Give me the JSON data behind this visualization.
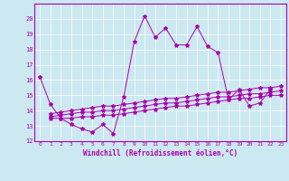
{
  "xlabel": "Windchill (Refroidissement éolien,°C)",
  "xlim": [
    -0.5,
    23.5
  ],
  "ylim": [
    12,
    21
  ],
  "yticks": [
    12,
    13,
    14,
    15,
    16,
    17,
    18,
    19,
    20
  ],
  "xticks": [
    0,
    1,
    2,
    3,
    4,
    5,
    6,
    7,
    8,
    9,
    10,
    11,
    12,
    13,
    14,
    15,
    16,
    17,
    18,
    19,
    20,
    21,
    22,
    23
  ],
  "bg_color": "#cce8f0",
  "line_color": "#aa00aa",
  "grid_color": "#ffffff",
  "series_main_x": [
    0,
    1,
    2,
    3,
    4,
    5,
    6,
    7,
    8,
    9,
    10,
    11,
    12,
    13,
    14,
    15,
    16,
    17,
    18,
    19,
    20,
    21,
    22
  ],
  "series_main_y": [
    16.2,
    14.4,
    13.5,
    13.1,
    12.8,
    12.6,
    13.1,
    12.5,
    14.9,
    18.5,
    20.2,
    18.8,
    19.4,
    18.3,
    18.3,
    19.5,
    18.2,
    17.8,
    14.7,
    15.4,
    14.3,
    14.5,
    15.4
  ],
  "series_low_x": [
    1,
    2,
    3,
    4,
    5,
    6,
    7,
    8,
    9,
    10,
    11,
    12,
    13,
    14,
    15,
    16,
    17,
    18,
    19,
    20,
    21,
    22,
    23
  ],
  "series_low_y": [
    13.5,
    13.5,
    13.5,
    13.6,
    13.6,
    13.7,
    13.7,
    13.8,
    13.9,
    14.0,
    14.1,
    14.2,
    14.3,
    14.3,
    14.4,
    14.5,
    14.6,
    14.7,
    14.8,
    14.8,
    14.9,
    15.0,
    15.0
  ],
  "series_mid_x": [
    1,
    2,
    3,
    4,
    5,
    6,
    7,
    8,
    9,
    10,
    11,
    12,
    13,
    14,
    15,
    16,
    17,
    18,
    19,
    20,
    21,
    22,
    23
  ],
  "series_mid_y": [
    13.6,
    13.7,
    13.8,
    13.9,
    13.9,
    14.0,
    14.0,
    14.1,
    14.2,
    14.3,
    14.4,
    14.5,
    14.5,
    14.6,
    14.7,
    14.8,
    14.9,
    14.9,
    15.0,
    15.1,
    15.1,
    15.2,
    15.3
  ],
  "series_high_x": [
    1,
    2,
    3,
    4,
    5,
    6,
    7,
    8,
    9,
    10,
    11,
    12,
    13,
    14,
    15,
    16,
    17,
    18,
    19,
    20,
    21,
    22,
    23
  ],
  "series_high_y": [
    13.8,
    13.9,
    14.0,
    14.1,
    14.2,
    14.3,
    14.3,
    14.4,
    14.5,
    14.6,
    14.7,
    14.8,
    14.8,
    14.9,
    15.0,
    15.1,
    15.2,
    15.2,
    15.3,
    15.4,
    15.5,
    15.5,
    15.6
  ]
}
